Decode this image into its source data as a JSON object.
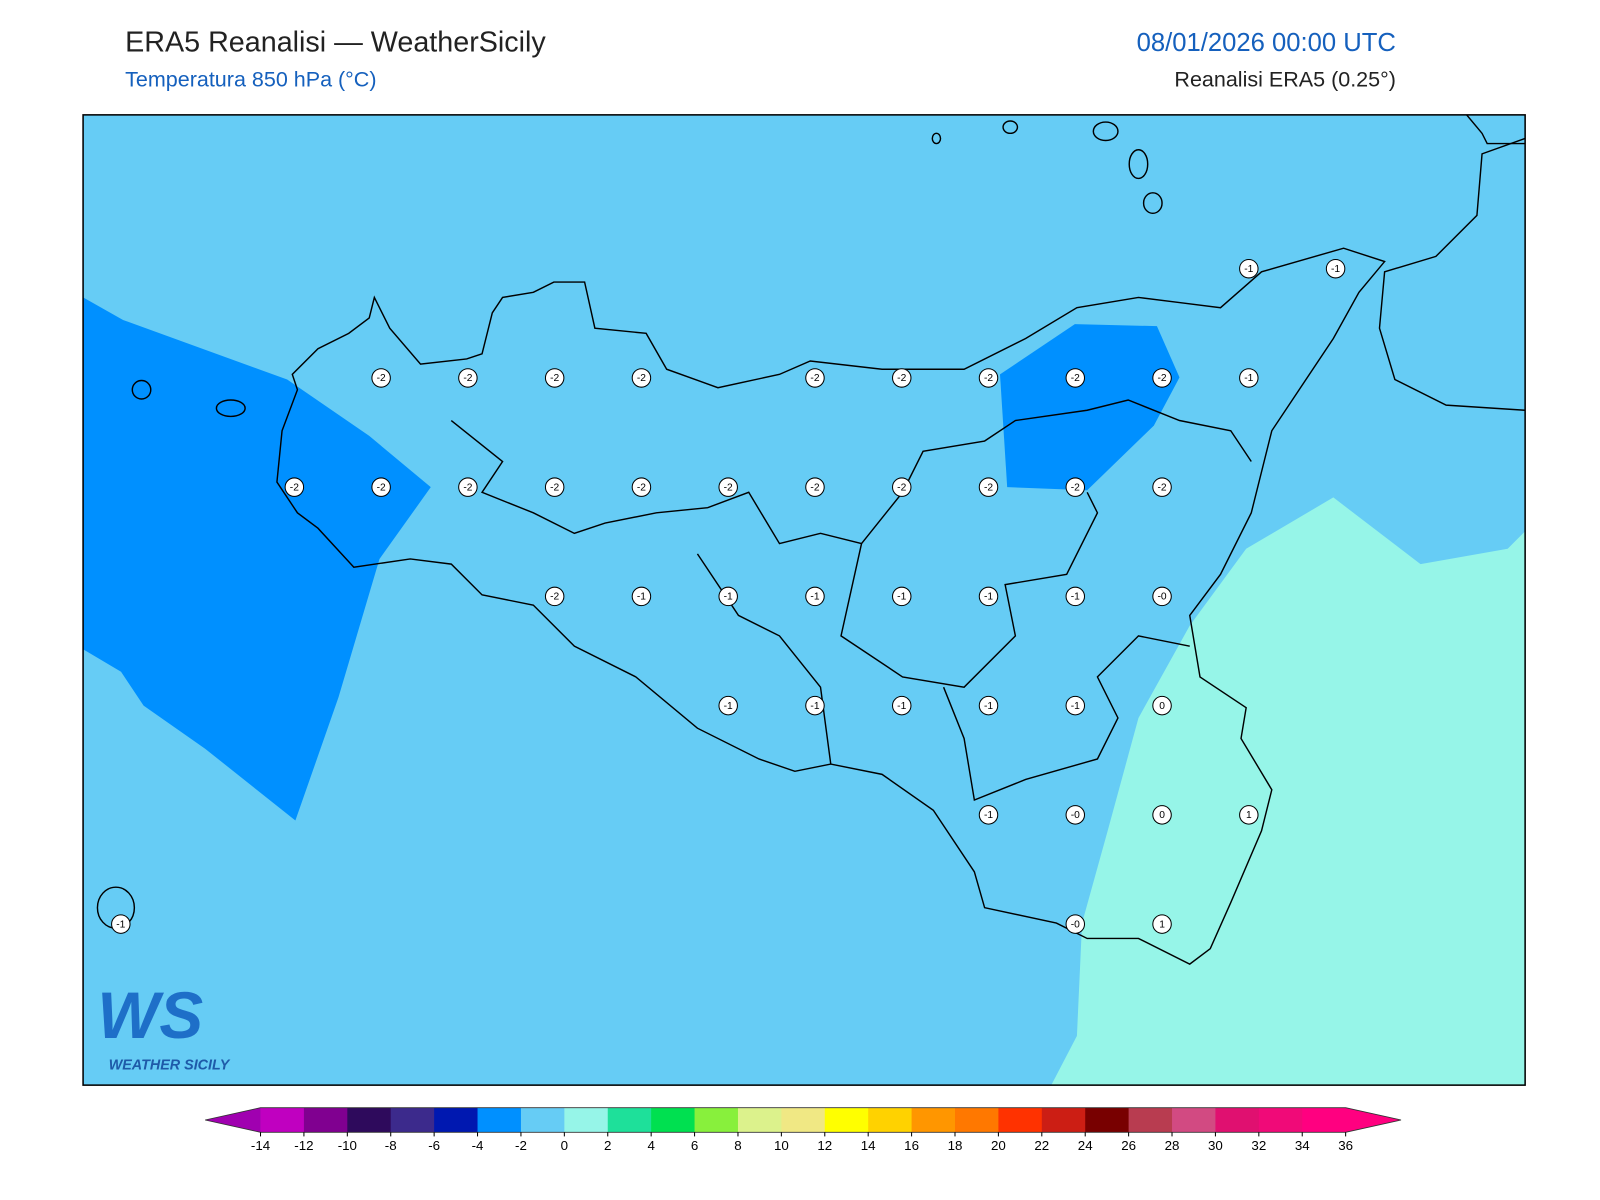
{
  "header": {
    "title": "ERA5 Reanalisi — WeatherSicily",
    "subtitle": "Temperatura 850 hPa (°C)",
    "date": "08/01/2026 00:00 UTC",
    "source": "Reanalisi ERA5 (0.25°)"
  },
  "logo": {
    "mark": "WS",
    "name": "WEATHER SICILY"
  },
  "map": {
    "values": [
      [
        null,
        null,
        null,
        null,
        null,
        null,
        null,
        null,
        null,
        null,
        null,
        null,
        null,
        -1,
        -1
      ],
      [
        null,
        null,
        null,
        -2,
        -2,
        -2,
        -2,
        null,
        -2,
        -2,
        -2,
        -2,
        -2,
        -1,
        null
      ],
      [
        null,
        null,
        -2,
        -2,
        -2,
        -2,
        -2,
        -2,
        -2,
        -2,
        -2,
        -2,
        -2,
        null,
        null
      ],
      [
        null,
        null,
        null,
        null,
        null,
        -2,
        -1,
        -1,
        -1,
        -1,
        -1,
        -1,
        -0.2,
        null,
        null
      ],
      [
        null,
        null,
        null,
        null,
        null,
        null,
        null,
        -1,
        -1,
        -1,
        -1,
        -1,
        0,
        null,
        null
      ],
      [
        null,
        null,
        null,
        null,
        null,
        null,
        null,
        null,
        null,
        null,
        -1,
        -0.2,
        0,
        1,
        null
      ],
      [
        -1,
        null,
        null,
        null,
        null,
        null,
        null,
        null,
        null,
        null,
        null,
        -0.2,
        1,
        null,
        null
      ]
    ],
    "value_labels": [
      [
        null,
        null,
        null,
        null,
        null,
        null,
        null,
        null,
        null,
        null,
        null,
        null,
        null,
        "-1",
        "-1"
      ],
      [
        null,
        null,
        null,
        "-2",
        "-2",
        "-2",
        "-2",
        null,
        "-2",
        "-2",
        "-2",
        "-2",
        "-2",
        "-1",
        null
      ],
      [
        null,
        null,
        "-2",
        "-2",
        "-2",
        "-2",
        "-2",
        "-2",
        "-2",
        "-2",
        "-2",
        "-2",
        "-2",
        null,
        null
      ],
      [
        null,
        null,
        null,
        null,
        null,
        "-2",
        "-1",
        "-1",
        "-1",
        "-1",
        "-1",
        "-1",
        "-0",
        null,
        null
      ],
      [
        null,
        null,
        null,
        null,
        null,
        null,
        null,
        "-1",
        "-1",
        "-1",
        "-1",
        "-1",
        "0",
        null,
        null
      ],
      [
        null,
        null,
        null,
        null,
        null,
        null,
        null,
        null,
        null,
        null,
        "-1",
        "-0",
        "0",
        "1",
        null
      ],
      [
        "-1",
        null,
        null,
        null,
        null,
        null,
        null,
        null,
        null,
        null,
        null,
        "-0",
        "1",
        null,
        null
      ]
    ]
  },
  "colorbar": {
    "ticks": [
      -14,
      -12,
      -10,
      -8,
      -6,
      -4,
      -2,
      0,
      2,
      4,
      6,
      8,
      10,
      12,
      14,
      16,
      18,
      20,
      22,
      24,
      26,
      28,
      30,
      32,
      34,
      36
    ],
    "colors": [
      "#c000c0",
      "#800090",
      "#2e0a5c",
      "#3c2a8c",
      "#0018b0",
      "#0090ff",
      "#66ccf5",
      "#96f5e8",
      "#1ee09a",
      "#00e050",
      "#88f03c",
      "#dcf28c",
      "#f0e884",
      "#ffff00",
      "#ffd200",
      "#ff9600",
      "#ff7800",
      "#ff3200",
      "#cc1e14",
      "#780000",
      "#b83c50",
      "#d24a82",
      "#e01070",
      "#f00a78",
      "#ff0080"
    ],
    "under": "#a000b0",
    "over": "#ff0080"
  }
}
